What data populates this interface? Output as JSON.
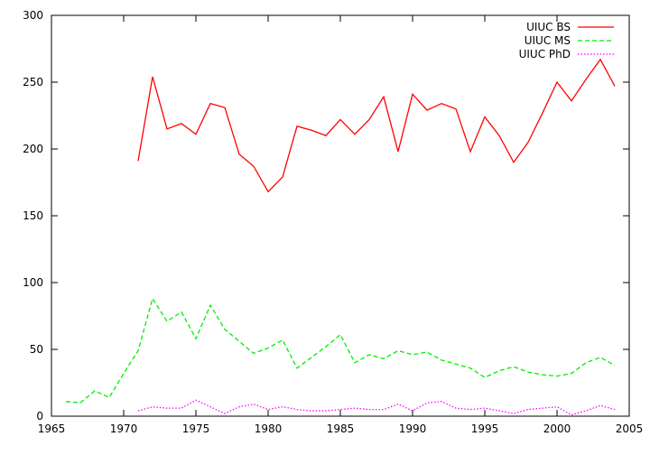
{
  "chart_data": {
    "type": "line",
    "title": "",
    "xlabel": "",
    "ylabel": "",
    "xlim": [
      1965,
      2005
    ],
    "ylim": [
      0,
      300
    ],
    "xticks": [
      1965,
      1970,
      1975,
      1980,
      1985,
      1990,
      1995,
      2000,
      2005
    ],
    "yticks": [
      0,
      50,
      100,
      150,
      200,
      250,
      300
    ],
    "grid": false,
    "legend_position": "top-right",
    "series": [
      {
        "name": "UIUC BS",
        "color": "#ff0000",
        "style": "solid",
        "x": [
          1971,
          1972,
          1973,
          1974,
          1975,
          1976,
          1977,
          1978,
          1979,
          1980,
          1981,
          1982,
          1983,
          1984,
          1985,
          1986,
          1987,
          1988,
          1989,
          1990,
          1991,
          1992,
          1993,
          1994,
          1995,
          1996,
          1997,
          1998,
          1999,
          2000,
          2001,
          2002,
          2003,
          2004
        ],
        "values": [
          191,
          254,
          215,
          219,
          211,
          234,
          231,
          196,
          187,
          168,
          179,
          217,
          214,
          210,
          222,
          211,
          222,
          239,
          198,
          241,
          229,
          234,
          230,
          198,
          224,
          210,
          190,
          205,
          227,
          250,
          236,
          252,
          267,
          247
        ]
      },
      {
        "name": "UIUC MS",
        "color": "#00ee00",
        "style": "dashed",
        "x": [
          1966,
          1967,
          1968,
          1969,
          1970,
          1971,
          1972,
          1973,
          1974,
          1975,
          1976,
          1977,
          1978,
          1979,
          1980,
          1981,
          1982,
          1983,
          1984,
          1985,
          1986,
          1987,
          1988,
          1989,
          1990,
          1991,
          1992,
          1993,
          1994,
          1995,
          1996,
          1997,
          1998,
          1999,
          2000,
          2001,
          2002,
          2003,
          2004
        ],
        "values": [
          11,
          10,
          19,
          14,
          32,
          49,
          88,
          71,
          78,
          58,
          83,
          65,
          56,
          47,
          51,
          57,
          36,
          44,
          52,
          61,
          40,
          46,
          43,
          49,
          46,
          48,
          42,
          39,
          36,
          29,
          34,
          37,
          33,
          31,
          30,
          32,
          40,
          44,
          38
        ]
      },
      {
        "name": "UIUC PhD",
        "color": "#ff00ff",
        "style": "dotted",
        "x": [
          1971,
          1972,
          1973,
          1974,
          1975,
          1976,
          1977,
          1978,
          1979,
          1980,
          1981,
          1982,
          1983,
          1984,
          1985,
          1986,
          1987,
          1988,
          1989,
          1990,
          1991,
          1992,
          1993,
          1994,
          1995,
          1996,
          1997,
          1998,
          1999,
          2000,
          2001,
          2002,
          2003,
          2004
        ],
        "values": [
          4,
          7,
          6,
          6,
          12,
          7,
          2,
          7,
          9,
          5,
          7,
          5,
          4,
          4,
          5,
          6,
          5,
          5,
          9,
          4,
          10,
          11,
          6,
          5,
          6,
          4,
          2,
          5,
          6,
          7,
          1,
          4,
          8,
          5
        ]
      }
    ]
  }
}
